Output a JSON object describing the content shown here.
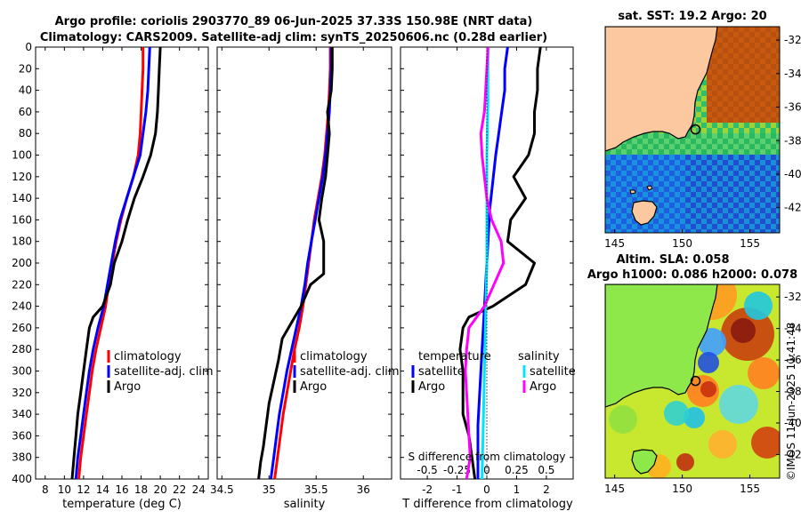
{
  "header": {
    "title_line1": "Argo profile: coriolis 2903770_89 06-Jun-2025 37.33S 150.98E (NRT data)",
    "title_line2": "Climatology: CARS2009. Satellite-adj clim: synTS_20250606.nc (0.28d earlier)"
  },
  "colors": {
    "climatology": "#ff0000",
    "satellite": "#0000ff",
    "argo": "#000000",
    "salinity_satellite": "#00e5ff",
    "salinity_argo": "#ff00ff",
    "land": "#fbc8a0"
  },
  "chart_data": [
    {
      "id": "temperature-panel",
      "type": "line",
      "xlabel": "temperature (deg C)",
      "ylabel": "",
      "xlim": [
        7,
        25
      ],
      "ylim": [
        400,
        0
      ],
      "xticks": [
        8,
        10,
        12,
        14,
        16,
        18,
        20,
        22,
        24
      ],
      "yticks": [
        0,
        20,
        40,
        60,
        80,
        100,
        120,
        140,
        160,
        180,
        200,
        220,
        240,
        260,
        280,
        300,
        320,
        340,
        360,
        380,
        400
      ],
      "legend": [
        "climatology",
        "satellite-adj. clim",
        "Argo"
      ],
      "series": [
        {
          "name": "climatology",
          "color": "red",
          "points": [
            [
              18.2,
              0
            ],
            [
              18.2,
              20
            ],
            [
              18.1,
              40
            ],
            [
              18.0,
              60
            ],
            [
              17.9,
              80
            ],
            [
              17.7,
              100
            ],
            [
              17.2,
              120
            ],
            [
              16.5,
              140
            ],
            [
              15.9,
              160
            ],
            [
              15.4,
              180
            ],
            [
              15.0,
              200
            ],
            [
              14.6,
              220
            ],
            [
              14.3,
              240
            ],
            [
              13.8,
              260
            ],
            [
              13.3,
              280
            ],
            [
              12.9,
              300
            ],
            [
              12.6,
              320
            ],
            [
              12.3,
              340
            ],
            [
              12.0,
              360
            ],
            [
              11.7,
              380
            ],
            [
              11.5,
              400
            ]
          ]
        },
        {
          "name": "satellite-adj. clim",
          "color": "blue",
          "points": [
            [
              18.9,
              0
            ],
            [
              18.8,
              20
            ],
            [
              18.7,
              40
            ],
            [
              18.5,
              60
            ],
            [
              18.2,
              80
            ],
            [
              17.9,
              100
            ],
            [
              17.2,
              120
            ],
            [
              16.5,
              140
            ],
            [
              15.8,
              160
            ],
            [
              15.3,
              180
            ],
            [
              14.9,
              200
            ],
            [
              14.5,
              220
            ],
            [
              14.1,
              240
            ],
            [
              13.5,
              260
            ],
            [
              13.0,
              280
            ],
            [
              12.6,
              300
            ],
            [
              12.3,
              320
            ],
            [
              12.0,
              340
            ],
            [
              11.7,
              360
            ],
            [
              11.4,
              380
            ],
            [
              11.2,
              400
            ]
          ]
        },
        {
          "name": "Argo",
          "color": "black",
          "points": [
            [
              20.0,
              0
            ],
            [
              19.9,
              20
            ],
            [
              19.8,
              40
            ],
            [
              19.7,
              60
            ],
            [
              19.5,
              80
            ],
            [
              19.0,
              100
            ],
            [
              18.2,
              120
            ],
            [
              17.3,
              140
            ],
            [
              16.6,
              160
            ],
            [
              16.0,
              180
            ],
            [
              15.2,
              200
            ],
            [
              14.8,
              220
            ],
            [
              14.0,
              240
            ],
            [
              13.0,
              250
            ],
            [
              12.6,
              260
            ],
            [
              12.3,
              280
            ],
            [
              12.0,
              300
            ],
            [
              11.7,
              320
            ],
            [
              11.4,
              340
            ],
            [
              11.2,
              360
            ],
            [
              11.0,
              380
            ],
            [
              10.8,
              400
            ]
          ]
        }
      ]
    },
    {
      "id": "salinity-panel",
      "type": "line",
      "xlabel": "salinity",
      "xlim": [
        34.45,
        36.3
      ],
      "ylim": [
        400,
        0
      ],
      "xticks": [
        34.5,
        35,
        35.5,
        36
      ],
      "legend": [
        "climatology",
        "satellite-adj. clim",
        "Argo"
      ],
      "series": [
        {
          "name": "climatology",
          "color": "red",
          "points": [
            [
              35.65,
              0
            ],
            [
              35.65,
              20
            ],
            [
              35.64,
              40
            ],
            [
              35.63,
              60
            ],
            [
              35.61,
              80
            ],
            [
              35.59,
              100
            ],
            [
              35.56,
              120
            ],
            [
              35.52,
              140
            ],
            [
              35.48,
              160
            ],
            [
              35.45,
              180
            ],
            [
              35.42,
              200
            ],
            [
              35.39,
              220
            ],
            [
              35.36,
              240
            ],
            [
              35.32,
              260
            ],
            [
              35.27,
              280
            ],
            [
              35.23,
              300
            ],
            [
              35.19,
              320
            ],
            [
              35.15,
              340
            ],
            [
              35.12,
              360
            ],
            [
              35.09,
              380
            ],
            [
              35.06,
              400
            ]
          ]
        },
        {
          "name": "satellite-adj. clim",
          "color": "blue",
          "points": [
            [
              35.66,
              0
            ],
            [
              35.66,
              20
            ],
            [
              35.65,
              40
            ],
            [
              35.64,
              60
            ],
            [
              35.62,
              80
            ],
            [
              35.6,
              100
            ],
            [
              35.57,
              120
            ],
            [
              35.53,
              140
            ],
            [
              35.49,
              160
            ],
            [
              35.45,
              180
            ],
            [
              35.41,
              200
            ],
            [
              35.38,
              220
            ],
            [
              35.34,
              240
            ],
            [
              35.29,
              260
            ],
            [
              35.24,
              280
            ],
            [
              35.19,
              300
            ],
            [
              35.15,
              320
            ],
            [
              35.11,
              340
            ],
            [
              35.08,
              360
            ],
            [
              35.05,
              380
            ],
            [
              35.02,
              400
            ]
          ]
        },
        {
          "name": "Argo",
          "color": "black",
          "points": [
            [
              35.67,
              0
            ],
            [
              35.67,
              20
            ],
            [
              35.66,
              40
            ],
            [
              35.62,
              60
            ],
            [
              35.64,
              80
            ],
            [
              35.62,
              100
            ],
            [
              35.6,
              120
            ],
            [
              35.56,
              140
            ],
            [
              35.53,
              160
            ],
            [
              35.58,
              180
            ],
            [
              35.58,
              210
            ],
            [
              35.44,
              220
            ],
            [
              35.34,
              240
            ],
            [
              35.24,
              255
            ],
            [
              35.14,
              270
            ],
            [
              35.1,
              290
            ],
            [
              35.05,
              310
            ],
            [
              35.0,
              330
            ],
            [
              34.97,
              350
            ],
            [
              34.94,
              370
            ],
            [
              34.91,
              385
            ],
            [
              34.89,
              400
            ]
          ]
        }
      ]
    },
    {
      "id": "difference-panel",
      "type": "line",
      "xlabel": "T difference from climatology",
      "xlabel_top": "S difference from climatology",
      "xlim": [
        -2.9,
        2.9
      ],
      "ylim": [
        400,
        0
      ],
      "xticks": [
        -2,
        -1,
        0,
        1,
        2
      ],
      "salinity_ticks": [
        "-0.5",
        "-0.25",
        "0",
        "0.25",
        "0.5"
      ],
      "salinity_tick_values": [
        -0.5,
        -0.25,
        0,
        0.25,
        0.5
      ],
      "legend_temperature": [
        "temperature",
        "satellite",
        "Argo"
      ],
      "legend_salinity": [
        "salinity",
        "satellite",
        "Argo"
      ],
      "series": [
        {
          "name": "temperature satellite",
          "color": "blue",
          "points": [
            [
              0.7,
              0
            ],
            [
              0.6,
              20
            ],
            [
              0.6,
              40
            ],
            [
              0.5,
              60
            ],
            [
              0.4,
              80
            ],
            [
              0.3,
              100
            ],
            [
              0.1,
              150
            ],
            [
              0.0,
              200
            ],
            [
              -0.1,
              250
            ],
            [
              -0.2,
              300
            ],
            [
              -0.3,
              350
            ],
            [
              -0.3,
              400
            ]
          ]
        },
        {
          "name": "temperature Argo",
          "color": "black",
          "points": [
            [
              1.8,
              0
            ],
            [
              1.7,
              20
            ],
            [
              1.7,
              40
            ],
            [
              1.6,
              60
            ],
            [
              1.6,
              80
            ],
            [
              1.4,
              100
            ],
            [
              0.9,
              120
            ],
            [
              1.3,
              140
            ],
            [
              0.8,
              160
            ],
            [
              0.7,
              180
            ],
            [
              1.6,
              200
            ],
            [
              1.3,
              220
            ],
            [
              0.2,
              240
            ],
            [
              -0.6,
              250
            ],
            [
              -0.8,
              260
            ],
            [
              -0.9,
              280
            ],
            [
              -0.8,
              300
            ],
            [
              -0.8,
              320
            ],
            [
              -0.8,
              340
            ],
            [
              -0.6,
              360
            ],
            [
              -0.5,
              380
            ],
            [
              -0.4,
              400
            ]
          ]
        },
        {
          "name": "salinity satellite",
          "color": "cyan",
          "points": [
            [
              0.01,
              0
            ],
            [
              0.01,
              50
            ],
            [
              0.0,
              100
            ],
            [
              0.0,
              150
            ],
            [
              0.0,
              200
            ],
            [
              -0.01,
              250
            ],
            [
              -0.02,
              300
            ],
            [
              -0.03,
              350
            ],
            [
              -0.04,
              400
            ]
          ]
        },
        {
          "name": "salinity Argo",
          "color": "magenta",
          "points": [
            [
              0.01,
              0
            ],
            [
              0.0,
              20
            ],
            [
              -0.01,
              40
            ],
            [
              -0.02,
              60
            ],
            [
              -0.05,
              80
            ],
            [
              -0.04,
              100
            ],
            [
              -0.02,
              120
            ],
            [
              0.0,
              140
            ],
            [
              0.04,
              160
            ],
            [
              0.12,
              180
            ],
            [
              0.14,
              200
            ],
            [
              0.06,
              220
            ],
            [
              -0.02,
              240
            ],
            [
              -0.15,
              260
            ],
            [
              -0.17,
              280
            ],
            [
              -0.18,
              300
            ],
            [
              -0.17,
              320
            ],
            [
              -0.16,
              340
            ],
            [
              -0.15,
              360
            ],
            [
              -0.14,
              380
            ],
            [
              -0.17,
              400
            ]
          ]
        }
      ]
    },
    {
      "id": "sst-map",
      "type": "heatmap",
      "title": "sat. SST: 19.2 Argo: 20",
      "xticks": [
        "145",
        "150",
        "155"
      ],
      "xtick_values": [
        145,
        150,
        155
      ],
      "yticks": [
        "-32",
        "-34",
        "-36",
        "-38",
        "-40",
        "-42"
      ],
      "ytick_values": [
        -32,
        -34,
        -36,
        -38,
        -40,
        -42
      ],
      "xlim": [
        144.3,
        157.2
      ],
      "ylim": [
        -43.5,
        -31.2
      ],
      "float_position": [
        150.98,
        -37.33
      ]
    },
    {
      "id": "sla-map",
      "type": "heatmap",
      "title_line1": "Altim. SLA: 0.058",
      "title_line2": "Argo h1000: 0.086 h2000: 0.078",
      "xticks": [
        "145",
        "150",
        "155"
      ],
      "xtick_values": [
        145,
        150,
        155
      ],
      "yticks": [
        "-32",
        "-34",
        "-36",
        "-38",
        "-40",
        "-42"
      ],
      "ytick_values": [
        -32,
        -34,
        -36,
        -38,
        -40,
        -42
      ],
      "xlim": [
        144.3,
        157.2
      ],
      "ylim": [
        -43.5,
        -31.2
      ],
      "float_position": [
        150.98,
        -37.33
      ]
    }
  ],
  "footer": {
    "imos_stamp": "©IMOS 11-Jun-2025 11:41:48"
  }
}
